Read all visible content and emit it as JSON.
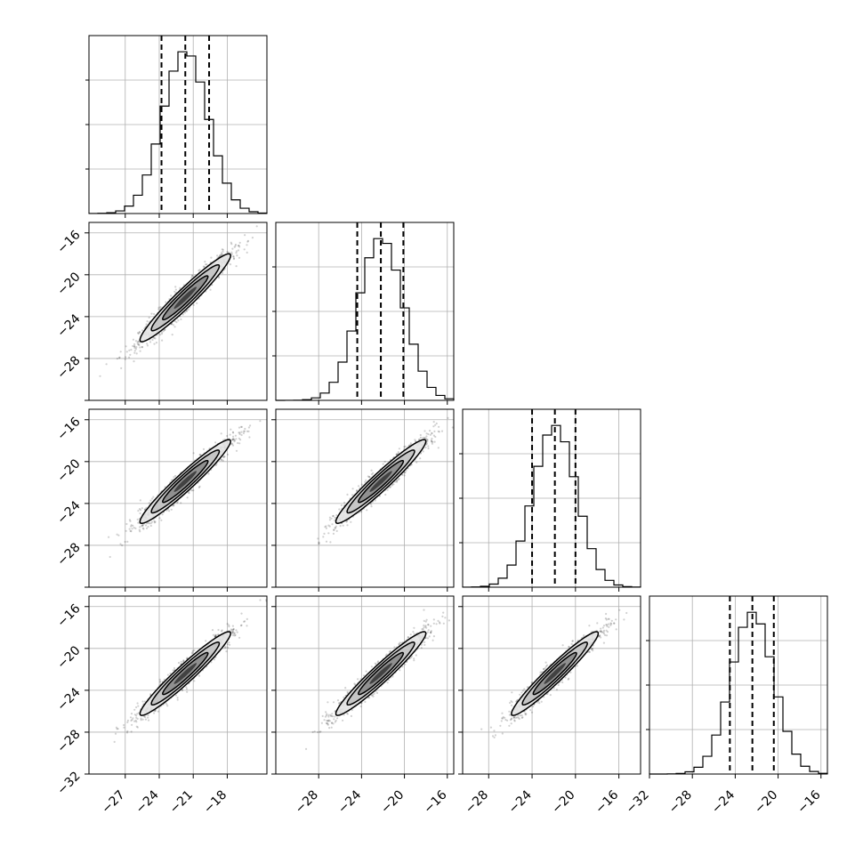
{
  "chart_data": {
    "type": "corner",
    "title": "",
    "grid": true,
    "parameters": [
      {
        "mean": -21.7,
        "std": 2.0,
        "q16": -23.8,
        "q50": -21.7,
        "q84": -19.6,
        "range": [
          -30.2,
          -14.5
        ]
      },
      {
        "mean": -22.2,
        "std": 2.1,
        "q16": -24.4,
        "q50": -22.2,
        "q84": -20.1,
        "range": [
          -32.0,
          -15.4
        ]
      },
      {
        "mean": -21.9,
        "std": 2.0,
        "q16": -24.0,
        "q50": -21.9,
        "q84": -20.0,
        "range": [
          -30.4,
          -14.0
        ]
      },
      {
        "mean": -22.4,
        "std": 2.0,
        "q16": -24.5,
        "q50": -22.4,
        "q84": -20.4,
        "range": [
          -32.0,
          -15.4
        ]
      }
    ],
    "correlation": 0.96,
    "x_ticks": [
      {
        "values": [
          -27,
          -24,
          -21,
          -18
        ],
        "labels": [
          "−27",
          "−24",
          "−21",
          "−18"
        ]
      },
      {
        "values": [
          -28,
          -24,
          -20,
          -16
        ],
        "labels": [
          "−28",
          "−24",
          "−20",
          "−16"
        ]
      },
      {
        "values": [
          -28,
          -24,
          -20,
          -16
        ],
        "labels": [
          "−28",
          "−24",
          "−20",
          "−16"
        ]
      },
      {
        "values": [
          -32,
          -28,
          -24,
          -20,
          -16
        ],
        "labels": [
          "−32",
          "−28",
          "−24",
          "−20",
          "−16"
        ]
      }
    ],
    "y_ticks": {
      "values": [
        -32,
        -28,
        -24,
        -20,
        -16
      ],
      "labels": [
        "−32",
        "−28",
        "−24",
        "−20",
        "−16"
      ],
      "range": [
        -32.0,
        -15.0
      ]
    },
    "histogram_bins": 20,
    "contour_levels": [
      0.5,
      1.0,
      1.5,
      2.0
    ],
    "colors": {
      "line": "#000000",
      "grid": "#b0b0b0",
      "density": "#000000"
    }
  }
}
